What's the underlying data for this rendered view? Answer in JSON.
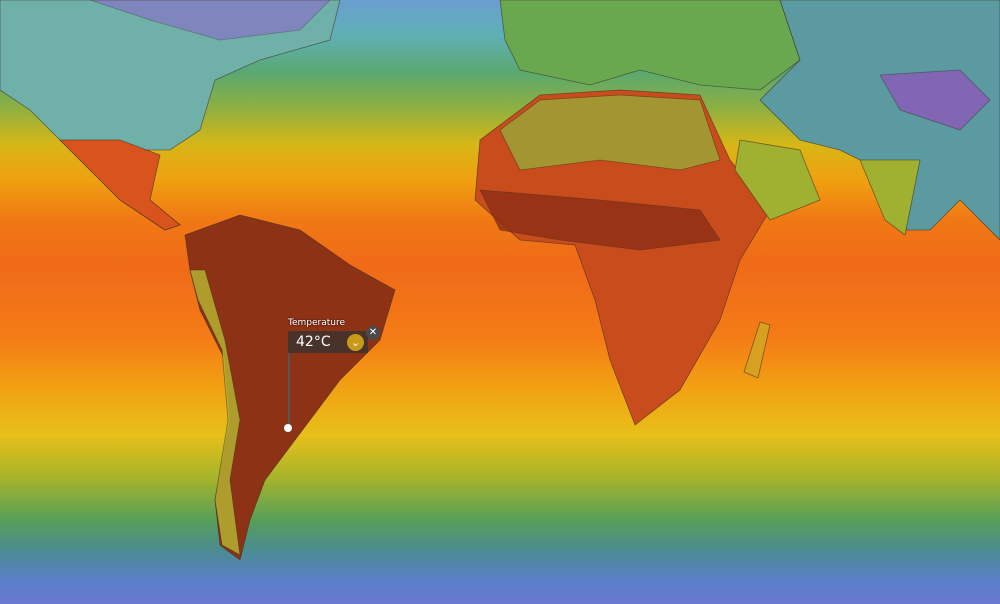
{
  "layer": "Temperature",
  "picker": {
    "label": "Temperature",
    "value": "42°C",
    "expand_icon": "chevron-down-icon",
    "close_icon": "close-icon"
  },
  "colors": {
    "hot": "#8a2a14",
    "warm": "#f07a14",
    "mild": "#e8c01a",
    "cool": "#58a058",
    "cold": "#6a78d0"
  }
}
